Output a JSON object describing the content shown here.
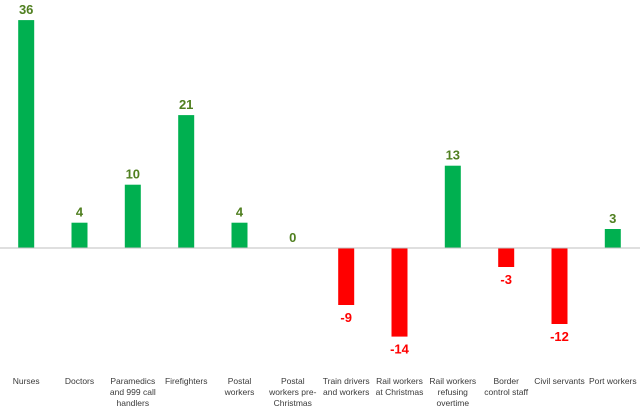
{
  "chart_data": {
    "type": "bar",
    "categories": [
      "Nurses",
      "Doctors",
      "Paramedics and 999 call handlers",
      "Firefighters",
      "Postal workers",
      "Postal workers pre-Christmas",
      "Train drivers and workers",
      "Rail workers at Christmas",
      "Rail workers refusing overtime",
      "Border control staff",
      "Civil servants",
      "Port workers"
    ],
    "category_label_lines": [
      [
        "Nurses"
      ],
      [
        "Doctors"
      ],
      [
        "Paramedics",
        "and 999 call",
        "handlers"
      ],
      [
        "Firefighters"
      ],
      [
        "Postal",
        "workers"
      ],
      [
        "Postal",
        "workers pre-",
        "Christmas"
      ],
      [
        "Train drivers",
        "and workers"
      ],
      [
        "Rail workers",
        "at Christmas"
      ],
      [
        "Rail workers",
        "refusing",
        "overtime"
      ],
      [
        "Border",
        "control staff"
      ],
      [
        "Civil servants"
      ],
      [
        "Port workers"
      ]
    ],
    "values": [
      36,
      4,
      10,
      21,
      4,
      0,
      -9,
      -14,
      13,
      -3,
      -12,
      3
    ],
    "title": "",
    "xlabel": "",
    "ylabel": "",
    "ylim": [
      -16,
      38
    ],
    "grid": false,
    "legend": "none",
    "colors": {
      "positive_bar": "#00b050",
      "negative_bar": "#ff0000",
      "positive_label": "#4f7f1f",
      "negative_label": "#ff0000",
      "axis": "#bfbfbf",
      "category_text": "#3a3a3a"
    }
  }
}
